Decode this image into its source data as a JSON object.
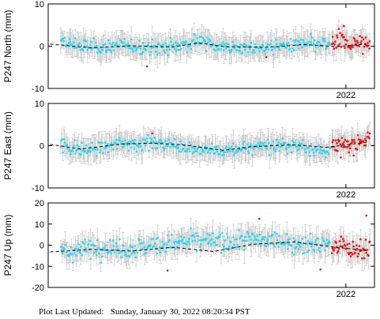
{
  "footer": {
    "label": "Plot Last Updated:",
    "timestamp": "Sunday, January 30, 2022 08:20:34 PST"
  },
  "colors": {
    "daily": "#22d8f2",
    "rapid": "#ee1111",
    "error_bar": "#bdbdbd",
    "trend": "#000000"
  },
  "chart_data": [
    {
      "type": "scatter",
      "ylabel": "P247 North (mm)",
      "ylim": [
        -10,
        10
      ],
      "yticks": [
        -10,
        0,
        10
      ],
      "xlim": [
        2019.08,
        2022.28
      ],
      "xticks": [
        {
          "x": 2022.0,
          "label": "2022"
        }
      ],
      "grid": false,
      "error_bars": true,
      "trend": {
        "style": "dashed",
        "x": [
          2019.1,
          2019.5,
          2019.9,
          2020.3,
          2020.55,
          2020.8,
          2021.2,
          2021.6,
          2021.9,
          2022.2
        ],
        "y": [
          0.5,
          -0.4,
          0.1,
          -0.2,
          0.8,
          -0.1,
          -0.3,
          0.4,
          -0.1,
          0.5
        ]
      },
      "series": [
        {
          "kind": "daily",
          "noise": 1.6,
          "n": 330,
          "x": [
            2019.2,
            2019.4,
            2019.6,
            2019.8,
            2020.0,
            2020.2,
            2020.4,
            2020.55,
            2020.7,
            2020.9,
            2021.1,
            2021.3,
            2021.5,
            2021.7,
            2021.85
          ],
          "y": [
            0.8,
            0.1,
            -0.3,
            0.2,
            -0.2,
            -0.4,
            0.4,
            1.4,
            0.4,
            -0.3,
            -0.6,
            -0.1,
            0.2,
            0.4,
            0.1
          ]
        },
        {
          "kind": "rapid",
          "noise": 2.0,
          "n": 55,
          "x": [
            2021.86,
            2021.95,
            2022.05,
            2022.15,
            2022.24
          ],
          "y": [
            0.8,
            1.0,
            0.6,
            0.4,
            0.9
          ]
        }
      ],
      "outliers": [
        {
          "x": 2020.05,
          "y": -4.8
        },
        {
          "x": 2021.98,
          "y": 4.8
        },
        {
          "x": 2021.22,
          "y": -2.6
        }
      ]
    },
    {
      "type": "scatter",
      "ylabel": "P247 East (mm)",
      "ylim": [
        -10,
        10
      ],
      "yticks": [
        -10,
        0,
        10
      ],
      "xlim": [
        2019.08,
        2022.28
      ],
      "xticks": [
        {
          "x": 2022.0,
          "label": "2022"
        }
      ],
      "grid": false,
      "error_bars": true,
      "trend": {
        "style": "dashed",
        "x": [
          2019.1,
          2019.4,
          2019.8,
          2020.1,
          2020.4,
          2020.8,
          2021.1,
          2021.5,
          2021.8,
          2022.2
        ],
        "y": [
          0.3,
          -0.8,
          0.4,
          0.6,
          0.2,
          -1.1,
          -0.2,
          0.2,
          -0.4,
          0.8
        ]
      },
      "series": [
        {
          "kind": "daily",
          "noise": 1.5,
          "n": 330,
          "x": [
            2019.2,
            2019.4,
            2019.6,
            2019.8,
            2020.0,
            2020.2,
            2020.4,
            2020.6,
            2020.8,
            2021.0,
            2021.2,
            2021.4,
            2021.6,
            2021.8,
            2021.85
          ],
          "y": [
            0.2,
            -1.2,
            -0.4,
            0.6,
            0.6,
            0.4,
            0.0,
            -1.2,
            -1.4,
            -0.6,
            0.2,
            0.0,
            -0.3,
            -1.4,
            -1.0
          ]
        },
        {
          "kind": "rapid",
          "noise": 1.6,
          "n": 55,
          "x": [
            2021.86,
            2021.95,
            2022.05,
            2022.15,
            2022.24
          ],
          "y": [
            -0.2,
            0.4,
            0.2,
            0.9,
            1.6
          ]
        }
      ],
      "outliers": [
        {
          "x": 2020.1,
          "y": 2.9
        },
        {
          "x": 2021.95,
          "y": -2.8
        }
      ]
    },
    {
      "type": "scatter",
      "ylabel": "P247 Up (mm)",
      "ylim": [
        -20,
        20
      ],
      "yticks": [
        -20,
        -10,
        0,
        10,
        20
      ],
      "xlim": [
        2019.08,
        2022.28
      ],
      "xticks": [
        {
          "x": 2022.0,
          "label": "2022"
        }
      ],
      "grid": false,
      "error_bars": true,
      "trend": {
        "style": "dashed",
        "x": [
          2019.1,
          2019.5,
          2019.9,
          2020.3,
          2020.7,
          2021.1,
          2021.5,
          2021.9,
          2022.2
        ],
        "y": [
          -3.2,
          -2.0,
          -2.8,
          -1.0,
          -3.0,
          0.5,
          1.5,
          -1.0,
          -2.5
        ]
      },
      "series": [
        {
          "kind": "daily",
          "noise": 4.2,
          "n": 330,
          "x": [
            2019.2,
            2019.4,
            2019.6,
            2019.8,
            2020.0,
            2020.2,
            2020.4,
            2020.6,
            2020.8,
            2021.0,
            2021.2,
            2021.4,
            2021.6,
            2021.8,
            2021.85
          ],
          "y": [
            -4.0,
            -2.0,
            -1.0,
            -2.0,
            -1.0,
            0.5,
            1.5,
            2.0,
            1.0,
            3.0,
            2.0,
            2.0,
            0.0,
            0.5,
            1.0
          ]
        },
        {
          "kind": "rapid",
          "noise": 4.5,
          "n": 55,
          "x": [
            2021.86,
            2021.95,
            2022.05,
            2022.15,
            2022.24
          ],
          "y": [
            -2.0,
            1.0,
            -3.0,
            -1.0,
            0.0
          ]
        }
      ],
      "outliers": [
        {
          "x": 2020.25,
          "y": -12.0
        },
        {
          "x": 2021.75,
          "y": -11.5
        },
        {
          "x": 2022.2,
          "y": 14.0
        },
        {
          "x": 2021.15,
          "y": 12.5
        }
      ]
    }
  ]
}
